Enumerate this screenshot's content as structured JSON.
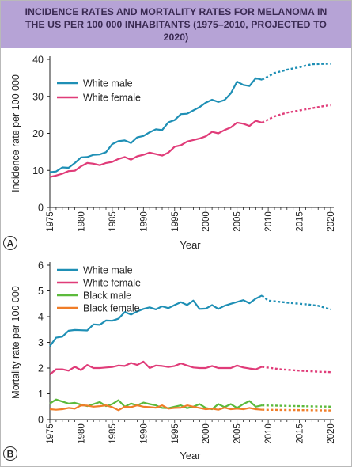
{
  "title": "INCIDENCE RATES AND MORTALITY RATES FOR MELANOMA IN THE US PER 100 000 INHABITANTS (1975–2010, PROJECTED TO 2020)",
  "colors": {
    "white_male": "#1e8fb5",
    "white_female": "#e03c79",
    "black_male": "#5cba3c",
    "black_female": "#f07d28",
    "header_bg": "#b6a3d6",
    "header_text": "#3a2a52"
  },
  "chart_data": [
    {
      "type": "line",
      "panel_label": "A",
      "xlabel": "Year",
      "ylabel": "Incidence rate per 100 000",
      "xlim": [
        1975,
        2020
      ],
      "ylim": [
        0,
        40
      ],
      "xticks": [
        "1975",
        "1980",
        "1985",
        "1990",
        "1995",
        "2000",
        "2005",
        "2010",
        "2015",
        "2020"
      ],
      "yticks": [
        "0",
        "10",
        "20",
        "30",
        "40"
      ],
      "legend_position": "top-left",
      "series": [
        {
          "name": "White male",
          "color": "#1e8fb5",
          "x": [
            1975,
            1976,
            1977,
            1978,
            1979,
            1980,
            1981,
            1982,
            1983,
            1984,
            1985,
            1986,
            1987,
            1988,
            1989,
            1990,
            1991,
            1992,
            1993,
            1994,
            1995,
            1996,
            1997,
            1998,
            1999,
            2000,
            2001,
            2002,
            2003,
            2004,
            2005,
            2006,
            2007,
            2008,
            2009
          ],
          "y": [
            9.5,
            9.7,
            10.8,
            10.7,
            12.0,
            13.5,
            13.6,
            14.2,
            14.3,
            14.9,
            17.1,
            17.9,
            18.1,
            17.4,
            18.9,
            19.3,
            20.3,
            21.1,
            20.9,
            23.0,
            23.6,
            25.2,
            25.3,
            26.2,
            27.1,
            28.3,
            29.1,
            28.5,
            29.0,
            30.8,
            34.0,
            33.1,
            32.8,
            34.9,
            34.5
          ],
          "projected_x": [
            2009,
            2011,
            2013,
            2015,
            2017,
            2019,
            2020
          ],
          "projected_y": [
            34.5,
            36.3,
            37.2,
            37.9,
            38.7,
            38.8,
            38.8
          ]
        },
        {
          "name": "White female",
          "color": "#e03c79",
          "x": [
            1975,
            1976,
            1977,
            1978,
            1979,
            1980,
            1981,
            1982,
            1983,
            1984,
            1985,
            1986,
            1987,
            1988,
            1989,
            1990,
            1991,
            1992,
            1993,
            1994,
            1995,
            1996,
            1997,
            1998,
            1999,
            2000,
            2001,
            2002,
            2003,
            2004,
            2005,
            2006,
            2007,
            2008,
            2009
          ],
          "y": [
            8.2,
            8.6,
            9.1,
            9.8,
            9.9,
            11.1,
            12.0,
            11.8,
            11.4,
            12.0,
            12.3,
            13.1,
            13.6,
            12.9,
            13.8,
            14.2,
            14.8,
            14.4,
            14.0,
            14.8,
            16.4,
            16.8,
            17.8,
            18.2,
            18.6,
            19.2,
            20.4,
            20.0,
            20.9,
            21.6,
            22.9,
            22.6,
            22.0,
            23.4,
            22.9
          ],
          "projected_x": [
            2009,
            2011,
            2013,
            2015,
            2017,
            2019,
            2020
          ],
          "projected_y": [
            22.9,
            24.6,
            25.6,
            26.2,
            26.8,
            27.4,
            27.6
          ]
        }
      ]
    },
    {
      "type": "line",
      "panel_label": "B",
      "xlabel": "Year",
      "ylabel": "Mortality rate per 100 000",
      "xlim": [
        1975,
        2020
      ],
      "ylim": [
        0,
        6
      ],
      "xticks": [
        "1975",
        "1980",
        "1985",
        "1990",
        "1995",
        "2000",
        "2005",
        "2010",
        "2015",
        "2020"
      ],
      "yticks": [
        "0",
        "1",
        "2",
        "3",
        "4",
        "5",
        "6"
      ],
      "legend_position": "top-left",
      "series": [
        {
          "name": "White male",
          "color": "#1e8fb5",
          "x": [
            1975,
            1976,
            1977,
            1978,
            1979,
            1980,
            1981,
            1982,
            1983,
            1984,
            1985,
            1986,
            1987,
            1988,
            1989,
            1990,
            1991,
            1992,
            1993,
            1994,
            1995,
            1996,
            1997,
            1998,
            1999,
            2000,
            2001,
            2002,
            2003,
            2004,
            2005,
            2006,
            2007,
            2008,
            2009
          ],
          "y": [
            2.85,
            3.18,
            3.22,
            3.45,
            3.48,
            3.47,
            3.46,
            3.7,
            3.68,
            3.85,
            3.84,
            3.92,
            4.18,
            4.08,
            4.2,
            4.3,
            4.36,
            4.28,
            4.4,
            4.33,
            4.45,
            4.56,
            4.45,
            4.62,
            4.3,
            4.31,
            4.45,
            4.3,
            4.42,
            4.5,
            4.57,
            4.64,
            4.52,
            4.7,
            4.82
          ],
          "projected_x": [
            2009,
            2010,
            2012,
            2014,
            2016,
            2018,
            2020
          ],
          "projected_y": [
            4.82,
            4.62,
            4.57,
            4.52,
            4.48,
            4.42,
            4.28
          ]
        },
        {
          "name": "White female",
          "color": "#e03c79",
          "x": [
            1975,
            1976,
            1977,
            1978,
            1979,
            1980,
            1981,
            1982,
            1983,
            1984,
            1985,
            1986,
            1987,
            1988,
            1989,
            1990,
            1991,
            1992,
            1993,
            1994,
            1995,
            1996,
            1997,
            1998,
            1999,
            2000,
            2001,
            2002,
            2003,
            2004,
            2005,
            2006,
            2007,
            2008,
            2009
          ],
          "y": [
            1.75,
            1.95,
            1.95,
            1.9,
            2.05,
            1.92,
            2.12,
            2.0,
            2.0,
            2.02,
            2.04,
            2.1,
            2.08,
            2.2,
            2.12,
            2.25,
            2.0,
            2.1,
            2.08,
            2.04,
            2.08,
            2.18,
            2.1,
            2.02,
            2.0,
            2.0,
            2.08,
            2.0,
            2.0,
            2.0,
            2.1,
            2.02,
            1.98,
            1.95,
            2.05
          ],
          "projected_x": [
            2009,
            2012,
            2015,
            2018,
            2020
          ],
          "projected_y": [
            2.05,
            1.95,
            1.9,
            1.86,
            1.84
          ]
        },
        {
          "name": "Black male",
          "color": "#5cba3c",
          "x": [
            1975,
            1976,
            1977,
            1978,
            1979,
            1980,
            1981,
            1982,
            1983,
            1984,
            1985,
            1986,
            1987,
            1988,
            1989,
            1990,
            1991,
            1992,
            1993,
            1994,
            1995,
            1996,
            1997,
            1998,
            1999,
            2000,
            2001,
            2002,
            2003,
            2004,
            2005,
            2006,
            2007,
            2008,
            2009
          ],
          "y": [
            0.62,
            0.78,
            0.7,
            0.62,
            0.65,
            0.58,
            0.52,
            0.6,
            0.68,
            0.52,
            0.6,
            0.75,
            0.5,
            0.62,
            0.55,
            0.66,
            0.6,
            0.55,
            0.45,
            0.44,
            0.5,
            0.55,
            0.44,
            0.5,
            0.6,
            0.45,
            0.4,
            0.6,
            0.48,
            0.6,
            0.45,
            0.6,
            0.72,
            0.5,
            0.55
          ],
          "projected_x": [
            2009,
            2013,
            2017,
            2020
          ],
          "projected_y": [
            0.55,
            0.53,
            0.51,
            0.5
          ]
        },
        {
          "name": "Black female",
          "color": "#f07d28",
          "x": [
            1975,
            1976,
            1977,
            1978,
            1979,
            1980,
            1981,
            1982,
            1983,
            1984,
            1985,
            1986,
            1987,
            1988,
            1989,
            1990,
            1991,
            1992,
            1993,
            1994,
            1995,
            1996,
            1997,
            1998,
            1999,
            2000,
            2001,
            2002,
            2003,
            2004,
            2005,
            2006,
            2007,
            2008,
            2009
          ],
          "y": [
            0.4,
            0.38,
            0.4,
            0.45,
            0.42,
            0.55,
            0.54,
            0.5,
            0.52,
            0.55,
            0.48,
            0.36,
            0.5,
            0.48,
            0.55,
            0.5,
            0.48,
            0.46,
            0.55,
            0.42,
            0.45,
            0.46,
            0.55,
            0.5,
            0.45,
            0.4,
            0.42,
            0.38,
            0.46,
            0.4,
            0.42,
            0.4,
            0.45,
            0.4,
            0.38
          ],
          "projected_x": [
            2009,
            2013,
            2017,
            2020
          ],
          "projected_y": [
            0.38,
            0.37,
            0.36,
            0.35
          ]
        }
      ]
    }
  ]
}
